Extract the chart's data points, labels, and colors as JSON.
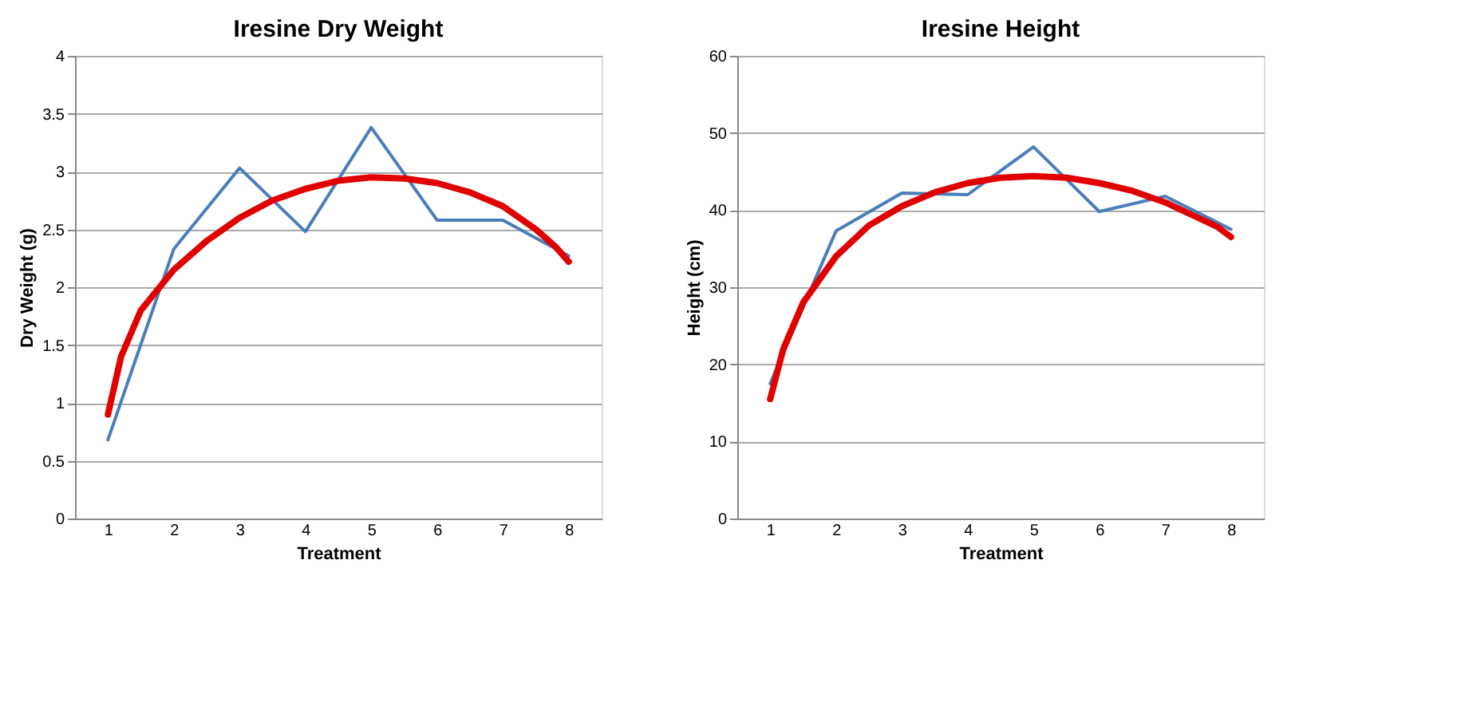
{
  "chart_data": [
    {
      "type": "line",
      "title": "Iresine Dry Weight",
      "xlabel": "Treatment",
      "ylabel": "Dry Weight (g)",
      "x": [
        1,
        2,
        3,
        4,
        5,
        6,
        7,
        8
      ],
      "xlim": [
        0.5,
        8.5
      ],
      "xticks": [
        1,
        2,
        3,
        4,
        5,
        6,
        7,
        8
      ],
      "ylim": [
        0,
        4
      ],
      "yticks": [
        0,
        0.5,
        1,
        1.5,
        2,
        2.5,
        3,
        3.5,
        4
      ],
      "grid": "y",
      "series": [
        {
          "color": "#4a7ebb",
          "values": [
            0.68,
            2.33,
            3.03,
            2.48,
            3.38,
            2.58,
            2.58,
            2.27
          ]
        },
        {
          "type": "line",
          "color": "#e00000",
          "x": [
            1,
            1.2,
            1.5,
            2,
            2.5,
            3,
            3.5,
            4,
            4.5,
            5,
            5.5,
            6,
            6.5,
            7,
            7.5,
            7.8,
            8
          ],
          "values": [
            0.9,
            1.4,
            1.8,
            2.15,
            2.4,
            2.6,
            2.75,
            2.85,
            2.92,
            2.95,
            2.94,
            2.9,
            2.82,
            2.7,
            2.5,
            2.35,
            2.22
          ]
        }
      ]
    },
    {
      "type": "line",
      "title": "Iresine Height",
      "xlabel": "Treatment",
      "ylabel": "Height (cm)",
      "x": [
        1,
        2,
        3,
        4,
        5,
        6,
        7,
        8
      ],
      "xlim": [
        0.5,
        8.5
      ],
      "xticks": [
        1,
        2,
        3,
        4,
        5,
        6,
        7,
        8
      ],
      "ylim": [
        0,
        60
      ],
      "yticks": [
        0,
        10,
        20,
        30,
        40,
        50,
        60
      ],
      "grid": "y",
      "series": [
        {
          "color": "#4a7ebb",
          "values": [
            17.5,
            37.3,
            42.2,
            42,
            48.2,
            39.8,
            41.8,
            37.5
          ]
        },
        {
          "type": "line",
          "color": "#e00000",
          "x": [
            1,
            1.2,
            1.5,
            2,
            2.5,
            3,
            3.5,
            4,
            4.5,
            5,
            5.5,
            6,
            6.5,
            7,
            7.5,
            7.8,
            8
          ],
          "values": [
            15.5,
            22,
            28,
            34,
            38,
            40.5,
            42.3,
            43.5,
            44.2,
            44.4,
            44.2,
            43.5,
            42.5,
            41,
            39,
            37.8,
            36.5
          ]
        }
      ]
    }
  ]
}
